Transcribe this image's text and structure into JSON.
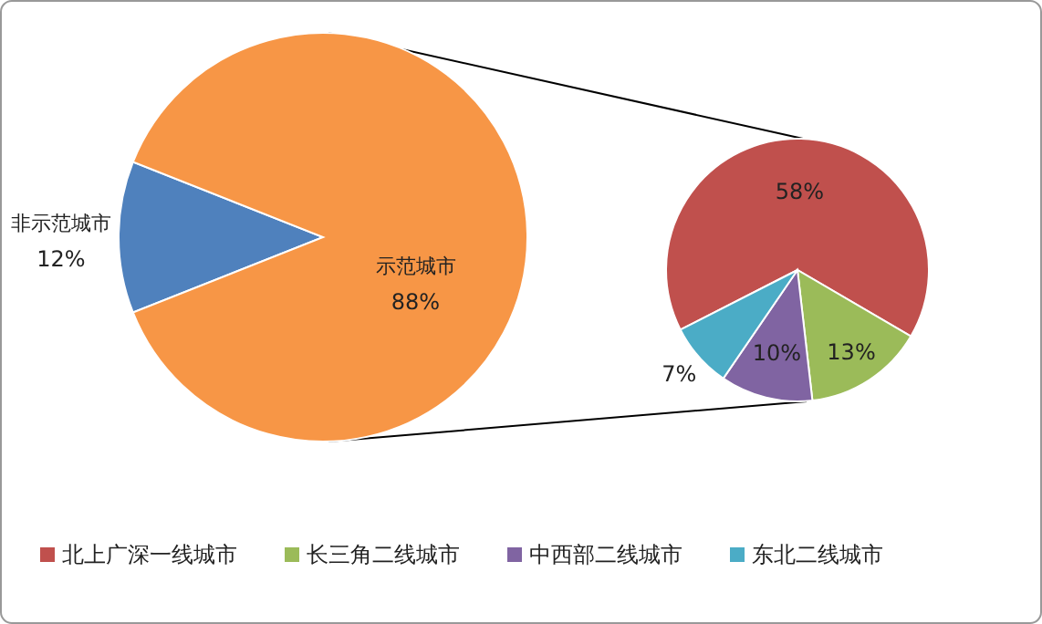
{
  "chart_data": [
    {
      "type": "pie",
      "categories": [
        "非示范城市",
        "示范城市"
      ],
      "values": [
        12,
        88
      ],
      "colors": [
        "#4f81bd",
        "#f79646"
      ],
      "value_labels": [
        "12%",
        "88%"
      ]
    },
    {
      "type": "pie",
      "categories": [
        "北上广深一线城市",
        "长三角二线城市",
        "中西部二线城市",
        "东北二线城市"
      ],
      "values": [
        58,
        13,
        10,
        7
      ],
      "colors": [
        "#c0504d",
        "#9bbb59",
        "#8064a2",
        "#4bacc6"
      ],
      "value_labels": [
        "58%",
        "13%",
        "10%",
        "7%"
      ],
      "legend": "bottom"
    }
  ]
}
